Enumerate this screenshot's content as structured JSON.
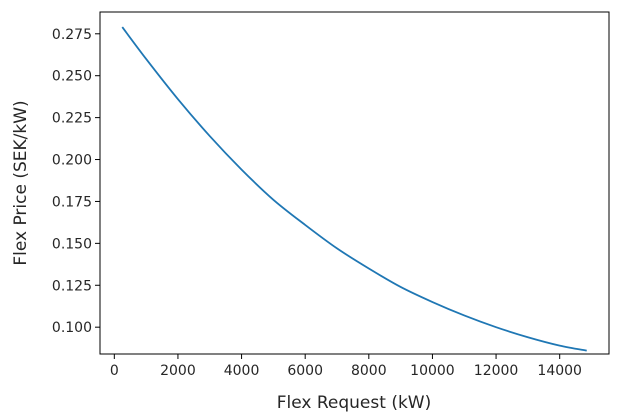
{
  "chart_data": {
    "type": "line",
    "title": "",
    "xlabel": "Flex Request (kW)",
    "ylabel": "Flex Price (SEK/kW)",
    "xlim": [
      -450,
      15550
    ],
    "ylim": [
      0.084,
      0.288
    ],
    "xticks": [
      0,
      2000,
      4000,
      6000,
      8000,
      10000,
      12000,
      14000
    ],
    "xtick_labels": [
      "0",
      "2000",
      "4000",
      "6000",
      "8000",
      "10000",
      "12000",
      "14000"
    ],
    "yticks": [
      0.1,
      0.125,
      0.15,
      0.175,
      0.2,
      0.225,
      0.25,
      0.275
    ],
    "ytick_labels": [
      "0.100",
      "0.125",
      "0.150",
      "0.175",
      "0.200",
      "0.225",
      "0.250",
      "0.275"
    ],
    "grid": false,
    "series": [
      {
        "color": "#1f77b4",
        "x": [
          250,
          1000,
          2000,
          3000,
          4000,
          5000,
          6000,
          7000,
          8000,
          9000,
          10000,
          11000,
          12000,
          13000,
          14000,
          14850
        ],
        "y": [
          0.279,
          0.26,
          0.236,
          0.214,
          0.194,
          0.176,
          0.161,
          0.147,
          0.135,
          0.124,
          0.115,
          0.107,
          0.1,
          0.094,
          0.089,
          0.086
        ]
      }
    ]
  }
}
